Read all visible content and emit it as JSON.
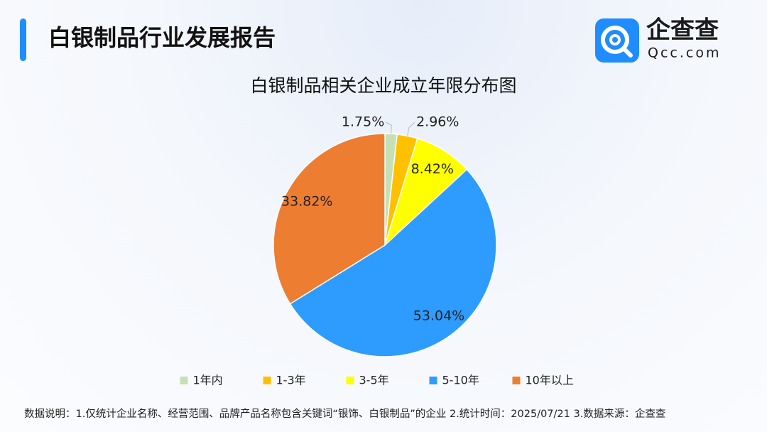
{
  "header": {
    "title": "白银制品行业发展报告",
    "logo_name": "企查查",
    "logo_url": "Qcc.com"
  },
  "chart_data": {
    "type": "pie",
    "title": "白银制品相关企业成立年限分布图",
    "categories": [
      "1年内",
      "1-3年",
      "3-5年",
      "5-10年",
      "10年以上"
    ],
    "values": [
      1.75,
      2.96,
      8.42,
      53.04,
      33.82
    ],
    "value_labels": [
      "1.75%",
      "2.96%",
      "8.42%",
      "53.04%",
      "33.82%"
    ],
    "colors": [
      "#c5e0b4",
      "#ffc000",
      "#ffff00",
      "#2e9bff",
      "#ed7d31"
    ],
    "legend": "bottom"
  },
  "footer": {
    "note": "数据说明：1.仅统计企业名称、经营范围、品牌产品名称包含关键词“银饰、白银制品”的企业  2.统计时间：2025/07/21  3.数据来源：企查查"
  }
}
